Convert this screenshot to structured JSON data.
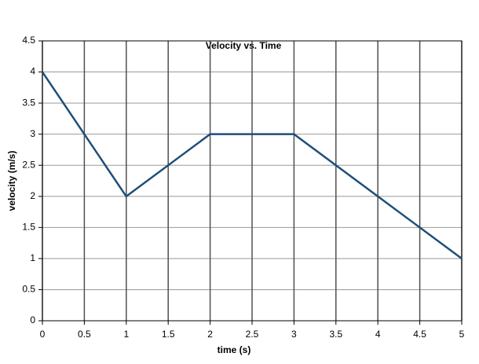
{
  "chart_data": {
    "type": "line",
    "title": "Velocity vs. Time",
    "x_label": "time (s)",
    "y_label": "velocity (m/s)",
    "x": [
      0,
      1,
      2,
      3,
      5
    ],
    "series": [
      {
        "name": "velocity",
        "color": "#1f4e79",
        "values": [
          4,
          2,
          3,
          3,
          1
        ]
      }
    ],
    "xlim": [
      0,
      5
    ],
    "xticks": [
      0,
      0.5,
      1,
      1.5,
      2,
      2.5,
      3,
      3.5,
      4,
      4.5,
      5
    ],
    "ylim": [
      0,
      4.5
    ],
    "yticks": [
      0,
      0.5,
      1,
      1.5,
      2,
      2.5,
      3,
      3.5,
      4,
      4.5
    ],
    "grid": true
  }
}
